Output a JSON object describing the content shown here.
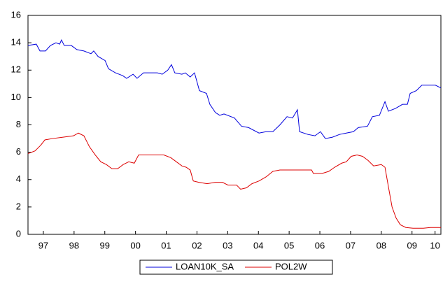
{
  "chart_data": {
    "type": "line",
    "xlim": [
      1997,
      2010.44
    ],
    "xticks": [
      {
        "value": 1997.5,
        "label": "97"
      },
      {
        "value": 1998.5,
        "label": "98"
      },
      {
        "value": 1999.5,
        "label": "99"
      },
      {
        "value": 2000.5,
        "label": "00"
      },
      {
        "value": 2001.5,
        "label": "01"
      },
      {
        "value": 2002.5,
        "label": "02"
      },
      {
        "value": 2003.5,
        "label": "03"
      },
      {
        "value": 2004.5,
        "label": "04"
      },
      {
        "value": 2005.5,
        "label": "05"
      },
      {
        "value": 2006.5,
        "label": "06"
      },
      {
        "value": 2007.5,
        "label": "07"
      },
      {
        "value": 2008.5,
        "label": "08"
      },
      {
        "value": 2009.5,
        "label": "09"
      },
      {
        "value": 2010.25,
        "label": "10"
      }
    ],
    "ylim": [
      0,
      16
    ],
    "yticks": [
      0,
      2,
      4,
      6,
      8,
      10,
      12,
      14,
      16
    ],
    "grid": false,
    "legend": "bottom",
    "series": [
      {
        "name": "LOAN10K_SA",
        "color": "#0000dd",
        "x": [
          1997.0,
          1997.27,
          1997.39,
          1997.57,
          1997.73,
          1997.91,
          1998.03,
          1998.09,
          1998.18,
          1998.41,
          1998.59,
          1998.82,
          1999.05,
          1999.14,
          1999.28,
          1999.51,
          1999.62,
          1999.85,
          2000.08,
          2000.21,
          2000.42,
          2000.55,
          2000.76,
          2000.99,
          2001.21,
          2001.37,
          2001.55,
          2001.67,
          2001.78,
          2002.01,
          2002.12,
          2002.28,
          2002.42,
          2002.58,
          2002.81,
          2002.92,
          2003.1,
          2003.24,
          2003.38,
          2003.72,
          2003.95,
          2004.18,
          2004.52,
          2004.75,
          2004.97,
          2005.2,
          2005.43,
          2005.61,
          2005.77,
          2005.84,
          2006.11,
          2006.34,
          2006.52,
          2006.68,
          2006.91,
          2007.14,
          2007.36,
          2007.59,
          2007.75,
          2008.05,
          2008.21,
          2008.44,
          2008.62,
          2008.73,
          2008.96,
          2009.19,
          2009.35,
          2009.44,
          2009.64,
          2009.82,
          2010.03,
          2010.26,
          2010.44
        ],
        "values": [
          13.8,
          13.9,
          13.4,
          13.4,
          13.8,
          14.0,
          13.9,
          14.2,
          13.8,
          13.8,
          13.5,
          13.4,
          13.2,
          13.4,
          13.0,
          12.7,
          12.1,
          11.8,
          11.6,
          11.4,
          11.7,
          11.4,
          11.8,
          11.8,
          11.8,
          11.7,
          12.0,
          12.4,
          11.8,
          11.7,
          11.8,
          11.5,
          11.8,
          10.5,
          10.3,
          9.5,
          8.9,
          8.7,
          8.8,
          8.5,
          7.9,
          7.8,
          7.4,
          7.5,
          7.5,
          8.0,
          8.6,
          8.5,
          9.1,
          7.5,
          7.3,
          7.2,
          7.5,
          7.0,
          7.1,
          7.3,
          7.4,
          7.5,
          7.8,
          7.9,
          8.6,
          8.7,
          9.7,
          9.0,
          9.2,
          9.5,
          9.5,
          10.3,
          10.5,
          10.9,
          10.9,
          10.9,
          10.7
        ]
      },
      {
        "name": "POL2W",
        "color": "#dd0000",
        "x": [
          1997.0,
          1997.23,
          1997.41,
          1997.55,
          1997.8,
          1998.14,
          1998.48,
          1998.64,
          1998.82,
          1999.0,
          1999.19,
          1999.37,
          1999.55,
          1999.73,
          1999.92,
          2000.1,
          2000.28,
          2000.46,
          2000.6,
          2000.87,
          2001.15,
          2001.42,
          2001.65,
          2001.83,
          2002.01,
          2002.15,
          2002.28,
          2002.38,
          2002.56,
          2002.83,
          2003.1,
          2003.33,
          2003.51,
          2003.79,
          2003.92,
          2004.11,
          2004.29,
          2004.52,
          2004.75,
          2004.97,
          2005.2,
          2005.66,
          2006.23,
          2006.29,
          2006.57,
          2006.79,
          2006.98,
          2007.21,
          2007.36,
          2007.52,
          2007.71,
          2007.89,
          2008.07,
          2008.25,
          2008.5,
          2008.62,
          2008.73,
          2008.85,
          2008.98,
          2009.12,
          2009.3,
          2009.53,
          2009.87,
          2010.1,
          2010.44
        ],
        "values": [
          5.9,
          6.1,
          6.5,
          6.9,
          7.0,
          7.1,
          7.2,
          7.4,
          7.2,
          6.4,
          5.8,
          5.3,
          5.1,
          4.8,
          4.8,
          5.1,
          5.3,
          5.2,
          5.8,
          5.8,
          5.8,
          5.8,
          5.6,
          5.3,
          5.0,
          4.9,
          4.7,
          3.9,
          3.8,
          3.7,
          3.8,
          3.8,
          3.6,
          3.6,
          3.3,
          3.4,
          3.7,
          3.9,
          4.2,
          4.6,
          4.7,
          4.7,
          4.7,
          4.45,
          4.45,
          4.6,
          4.9,
          5.2,
          5.3,
          5.7,
          5.8,
          5.7,
          5.4,
          5.0,
          5.1,
          4.9,
          3.5,
          2.0,
          1.2,
          0.7,
          0.5,
          0.45,
          0.45,
          0.5,
          0.5
        ]
      }
    ]
  }
}
